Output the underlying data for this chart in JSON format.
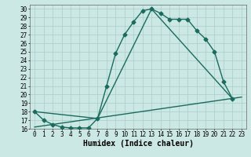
{
  "xlabel": "Humidex (Indice chaleur)",
  "ylabel": "",
  "bg_color": "#cce8e4",
  "grid_color": "#aaccca",
  "line_color": "#1a6b5e",
  "xlim": [
    -0.5,
    23.5
  ],
  "ylim": [
    16,
    30.5
  ],
  "yticks": [
    16,
    17,
    18,
    19,
    20,
    21,
    22,
    23,
    24,
    25,
    26,
    27,
    28,
    29,
    30
  ],
  "xticks": [
    0,
    1,
    2,
    3,
    4,
    5,
    6,
    7,
    8,
    9,
    10,
    11,
    12,
    13,
    14,
    15,
    16,
    17,
    18,
    19,
    20,
    21,
    22,
    23
  ],
  "line1_x": [
    0,
    1,
    2,
    3,
    4,
    5,
    6,
    7,
    8,
    9,
    10,
    11,
    12,
    13,
    14,
    15,
    16,
    17,
    18,
    19,
    20,
    21,
    22
  ],
  "line1_y": [
    18.0,
    17.0,
    16.5,
    16.2,
    16.1,
    16.1,
    16.1,
    17.2,
    21.0,
    24.8,
    27.0,
    28.5,
    29.8,
    30.0,
    29.5,
    28.8,
    28.8,
    28.8,
    27.5,
    26.5,
    25.0,
    21.5,
    19.5
  ],
  "line2_x": [
    0,
    7,
    13,
    22
  ],
  "line2_y": [
    18.0,
    17.2,
    30.0,
    19.5
  ],
  "line3_x": [
    0,
    23
  ],
  "line3_y": [
    16.2,
    19.7
  ],
  "marker": "D",
  "markersize": 2.5,
  "linewidth": 1.0,
  "xlabel_fontsize": 7,
  "tick_fontsize": 5.5
}
